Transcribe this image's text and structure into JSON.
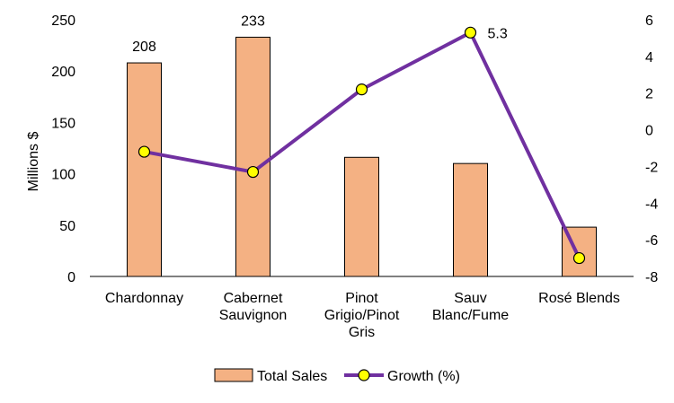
{
  "chart_data": {
    "type": "bar",
    "categories": [
      [
        "Chardonnay"
      ],
      [
        "Cabernet",
        "Sauvignon"
      ],
      [
        "Pinot",
        "Grigio/Pinot",
        "Gris"
      ],
      [
        "Sauv",
        "Blanc/Fume"
      ],
      [
        "Rosé Blends"
      ]
    ],
    "series": [
      {
        "name": "Total Sales",
        "kind": "bar",
        "axis": "left",
        "color": "#F4B183",
        "values": [
          208,
          233,
          116,
          110,
          48
        ],
        "data_labels": [
          "208",
          "233",
          "",
          "",
          ""
        ]
      },
      {
        "name": "Growth (%)",
        "kind": "line",
        "axis": "right",
        "color": "#7030A0",
        "marker_color": "#FFFF00",
        "values": [
          -1.2,
          -2.3,
          2.2,
          5.3,
          -7.0
        ],
        "data_labels": [
          "",
          "",
          "",
          "5.3",
          ""
        ]
      }
    ],
    "ylabel": "Millions $",
    "ylim": [
      0,
      250
    ],
    "y_ticks": [
      0,
      50,
      100,
      150,
      200,
      250
    ],
    "y2lim": [
      -8,
      6
    ],
    "y2_ticks": [
      -8,
      -6,
      -4,
      -2,
      0,
      2,
      4,
      6
    ],
    "grid": false,
    "legend_position": "bottom"
  }
}
